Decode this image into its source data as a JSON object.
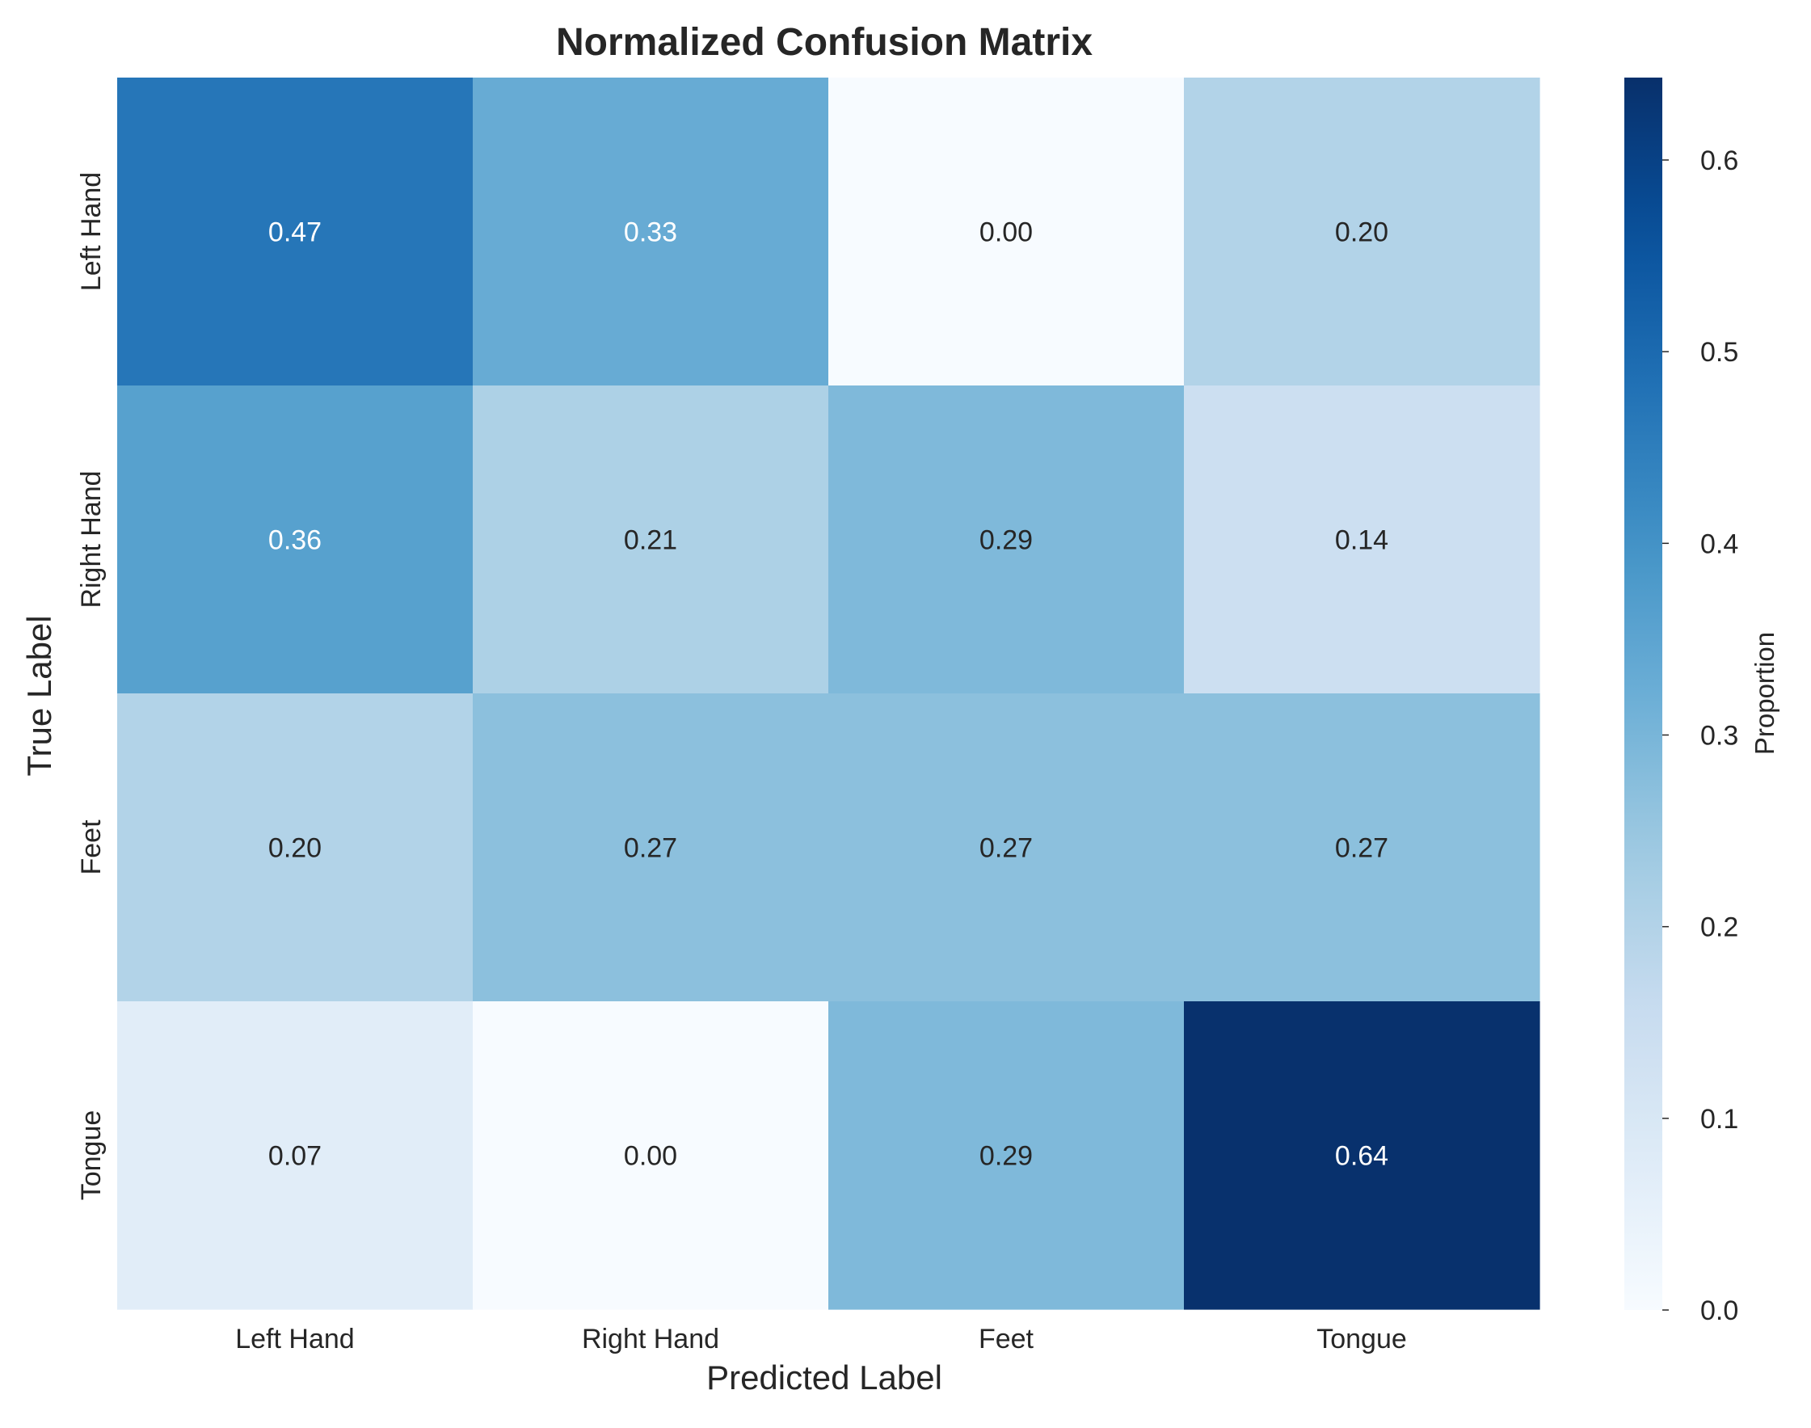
{
  "chart_data": {
    "type": "heatmap",
    "title": "Normalized Confusion Matrix",
    "xlabel": "Predicted Label",
    "ylabel": "True Label",
    "x_categories": [
      "Left Hand",
      "Right Hand",
      "Feet",
      "Tongue"
    ],
    "y_categories": [
      "Left Hand",
      "Right Hand",
      "Feet",
      "Tongue"
    ],
    "values": [
      [
        0.47,
        0.33,
        0.0,
        0.2
      ],
      [
        0.36,
        0.21,
        0.29,
        0.14
      ],
      [
        0.2,
        0.27,
        0.27,
        0.27
      ],
      [
        0.07,
        0.0,
        0.29,
        0.64
      ]
    ],
    "annotations": [
      [
        "0.47",
        "0.33",
        "0.00",
        "0.20"
      ],
      [
        "0.36",
        "0.21",
        "0.29",
        "0.14"
      ],
      [
        "0.20",
        "0.27",
        "0.27",
        "0.27"
      ],
      [
        "0.07",
        "0.00",
        "0.29",
        "0.64"
      ]
    ],
    "colormap": "Blues",
    "vmin": 0.0,
    "vmax": 0.643,
    "colorbar": {
      "label": "Proportion",
      "ticks": [
        0.0,
        0.1,
        0.2,
        0.3,
        0.4,
        0.5,
        0.6
      ],
      "tick_labels": [
        "0.0",
        "0.1",
        "0.2",
        "0.3",
        "0.4",
        "0.5",
        "0.6"
      ]
    },
    "grid": false
  }
}
